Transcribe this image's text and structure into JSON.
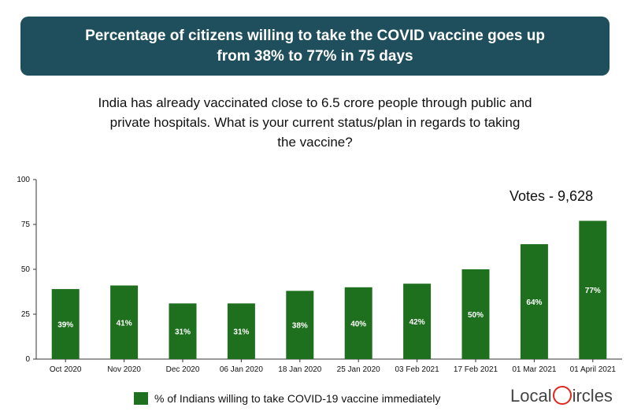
{
  "header": {
    "line1": "Percentage of citizens willing to take the COVID vaccine goes up",
    "line2": "from 38% to 77% in 75 days"
  },
  "question": {
    "line1": "India has already vaccinated close to 6.5 crore people through public and",
    "line2": "private hospitals. What is your current status/plan in regards to taking",
    "line3": "the vaccine?"
  },
  "votes": "Votes - 9,628",
  "legend": {
    "label": "% of Indians willing to take COVID-19 vaccine immediately"
  },
  "logo": {
    "part1": "Local",
    "part2": "ircles"
  },
  "colors": {
    "bar": "#1e6f1e",
    "banner": "#1f4f5c",
    "axis": "#333333",
    "logo_accent": "#e0261d"
  },
  "chart_data": {
    "type": "bar",
    "categories": [
      "Oct 2020",
      "Nov 2020",
      "Dec 2020",
      "06 Jan 2020",
      "18 Jan 2020",
      "25 Jan 2020",
      "03 Feb 2021",
      "17 Feb 2021",
      "01 Mar 2021",
      "01 April 2021"
    ],
    "series": [
      {
        "name": "% of Indians willing to take COVID-19 vaccine immediately",
        "values": [
          39,
          41,
          31,
          31,
          38,
          40,
          42,
          50,
          64,
          77
        ]
      }
    ],
    "data_labels": [
      "39%",
      "41%",
      "31%",
      "31%",
      "38%",
      "40%",
      "42%",
      "50%",
      "64%",
      "77%"
    ],
    "yticks": [
      "0",
      "25",
      "50",
      "75",
      "100"
    ],
    "ylim": [
      0,
      100
    ],
    "grid": false,
    "legend_position": "bottom"
  }
}
